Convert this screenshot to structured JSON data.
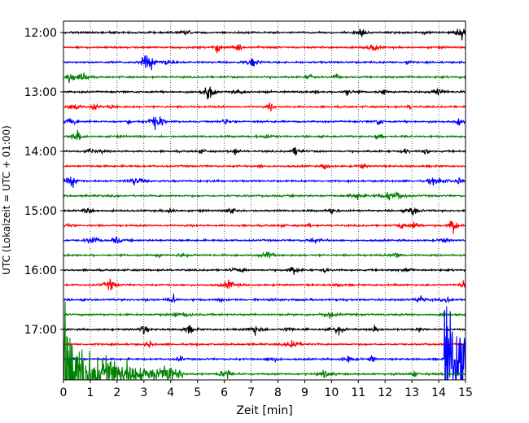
{
  "chart_data": {
    "type": "line",
    "title": "",
    "xlabel": "Zeit  [min]",
    "ylabel": "UTC (Lokalzeit = UTC + 01:00)",
    "xlim": [
      0,
      15
    ],
    "x_ticks": [
      "0",
      "1",
      "2",
      "3",
      "4",
      "5",
      "6",
      "7",
      "8",
      "9",
      "10",
      "11",
      "12",
      "13",
      "14",
      "15"
    ],
    "y_ticks": [
      "12:00",
      "13:00",
      "14:00",
      "15:00",
      "16:00",
      "17:00"
    ],
    "y_start": "12:00",
    "y_end": "17:45",
    "row_interval_min": 15,
    "grid": {
      "x": true,
      "y": false
    },
    "color_cycle": [
      "#000000",
      "#ff0000",
      "#0000ff",
      "#008000"
    ],
    "rows": [
      {
        "time": "12:00",
        "color": "#000000"
      },
      {
        "time": "12:15",
        "color": "#ff0000"
      },
      {
        "time": "12:30",
        "color": "#0000ff"
      },
      {
        "time": "12:45",
        "color": "#008000"
      },
      {
        "time": "13:00",
        "color": "#000000"
      },
      {
        "time": "13:15",
        "color": "#ff0000"
      },
      {
        "time": "13:30",
        "color": "#0000ff"
      },
      {
        "time": "13:45",
        "color": "#008000"
      },
      {
        "time": "14:00",
        "color": "#000000"
      },
      {
        "time": "14:15",
        "color": "#ff0000"
      },
      {
        "time": "14:30",
        "color": "#0000ff"
      },
      {
        "time": "14:45",
        "color": "#008000"
      },
      {
        "time": "15:00",
        "color": "#000000"
      },
      {
        "time": "15:15",
        "color": "#ff0000"
      },
      {
        "time": "15:30",
        "color": "#0000ff"
      },
      {
        "time": "15:45",
        "color": "#008000"
      },
      {
        "time": "16:00",
        "color": "#000000"
      },
      {
        "time": "16:15",
        "color": "#ff0000"
      },
      {
        "time": "16:30",
        "color": "#0000ff"
      },
      {
        "time": "16:45",
        "color": "#008000"
      },
      {
        "time": "17:00",
        "color": "#000000"
      },
      {
        "time": "17:15",
        "color": "#ff0000"
      },
      {
        "time": "17:30",
        "color": "#0000ff"
      },
      {
        "time": "17:45",
        "color": "#008000"
      }
    ],
    "events": [
      {
        "row": "17:30",
        "start_min": 14.2,
        "end_min": 15,
        "description": "large-amplitude burst at end of trace",
        "color": "#0000ff"
      },
      {
        "row": "17:45",
        "start_min": 0,
        "end_min": 4.5,
        "description": "large-amplitude decaying burst at start of trace",
        "color": "#008000"
      }
    ]
  }
}
